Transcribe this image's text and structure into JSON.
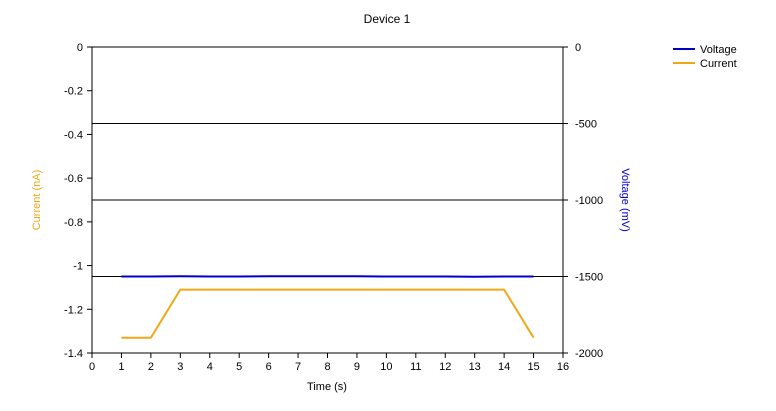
{
  "chart_data": {
    "type": "line",
    "title": "Device 1",
    "xlabel": "Time (s)",
    "ylabel_left": "Current (nA)",
    "ylabel_right": "Voltage (mV)",
    "xlim": [
      0,
      16
    ],
    "ylim_left": [
      -1.4,
      0
    ],
    "ylim_right": [
      -2000,
      0
    ],
    "x_ticks": [
      "0",
      "1",
      "2",
      "3",
      "4",
      "5",
      "6",
      "7",
      "8",
      "9",
      "10",
      "11",
      "12",
      "13",
      "14",
      "15",
      "16"
    ],
    "y_left_ticks": [
      "0",
      "-0.2",
      "-0.4",
      "-0.6",
      "-0.8",
      "-1",
      "-1.2",
      "-1.4"
    ],
    "y_right_ticks": [
      "0",
      "-500",
      "-1000",
      "-1500",
      "-2000"
    ],
    "legend_position": "top-right",
    "grid": "horizontal lines at right-axis major ticks",
    "series": [
      {
        "name": "Voltage",
        "axis": "right",
        "color": "#0000cc",
        "x": [
          1,
          2,
          3,
          4,
          5,
          6,
          7,
          8,
          9,
          10,
          11,
          12,
          13,
          14,
          15
        ],
        "y": [
          -1500,
          -1500,
          -1498,
          -1500,
          -1500,
          -1499,
          -1498,
          -1499,
          -1499,
          -1500,
          -1500,
          -1500,
          -1502,
          -1500,
          -1500
        ]
      },
      {
        "name": "Current",
        "axis": "left",
        "color": "#f0a818",
        "x": [
          1,
          2,
          3,
          4,
          5,
          6,
          7,
          8,
          9,
          10,
          11,
          12,
          13,
          14,
          15
        ],
        "y": [
          -1.33,
          -1.33,
          -1.11,
          -1.11,
          -1.11,
          -1.11,
          -1.11,
          -1.11,
          -1.11,
          -1.11,
          -1.11,
          -1.11,
          -1.11,
          -1.11,
          -1.33
        ]
      }
    ]
  }
}
